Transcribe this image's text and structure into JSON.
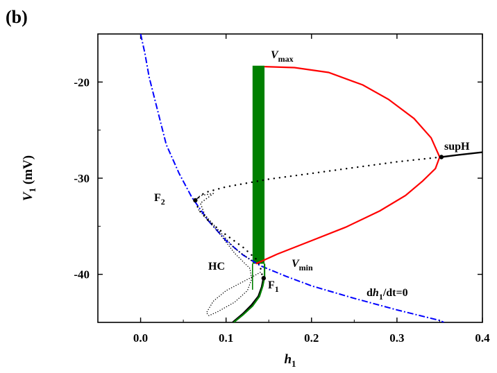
{
  "panel_label": "(b)",
  "colors": {
    "stable_cycle": "#ff0000",
    "chaotic_band": "#008000",
    "nullcline": "#0000ff",
    "equilibrium": "#000000"
  },
  "chart_data": {
    "type": "line",
    "title": "",
    "xlabel": {
      "main": "h",
      "sub": "1"
    },
    "ylabel": {
      "main": "V",
      "sub": "1",
      "unit": " (mV)"
    },
    "xlim": [
      -0.05,
      0.4
    ],
    "ylim": [
      -45,
      -15
    ],
    "xticks": [
      0.0,
      0.1,
      0.2,
      0.3,
      0.4
    ],
    "yticks": [
      -20,
      -30,
      -40
    ],
    "xtick_labels": [
      "0.0",
      "0.1",
      "0.2",
      "0.3",
      "0.4"
    ],
    "ytick_labels": [
      "-20",
      "-30",
      "-40"
    ],
    "grid": false,
    "series": [
      {
        "style": "dash-dot blue",
        "points": [
          [
            0.0,
            -15
          ],
          [
            0.005,
            -17
          ],
          [
            0.01,
            -19.5
          ],
          [
            0.02,
            -23
          ],
          [
            0.03,
            -26.5
          ],
          [
            0.045,
            -29.5
          ],
          [
            0.06,
            -32
          ],
          [
            0.08,
            -34.5
          ],
          [
            0.1,
            -36.5
          ],
          [
            0.12,
            -38
          ],
          [
            0.14,
            -39.1
          ],
          [
            0.17,
            -40.2
          ],
          [
            0.2,
            -41.2
          ],
          [
            0.25,
            -42.5
          ],
          [
            0.3,
            -43.7
          ],
          [
            0.35,
            -44.8
          ],
          [
            0.355,
            -45
          ]
        ]
      },
      {
        "style": "solid red",
        "upper": [
          [
            0.145,
            -18.4
          ],
          [
            0.18,
            -18.5
          ],
          [
            0.22,
            -19
          ],
          [
            0.26,
            -20.3
          ],
          [
            0.29,
            -21.8
          ],
          [
            0.32,
            -23.8
          ],
          [
            0.34,
            -25.8
          ],
          [
            0.35,
            -27.8
          ]
        ],
        "lower": [
          [
            0.135,
            -38.9
          ],
          [
            0.16,
            -37.9
          ],
          [
            0.2,
            -36.5
          ],
          [
            0.24,
            -35.1
          ],
          [
            0.28,
            -33.4
          ],
          [
            0.31,
            -31.8
          ],
          [
            0.33,
            -30.3
          ],
          [
            0.345,
            -29.0
          ],
          [
            0.35,
            -27.8
          ]
        ]
      },
      {
        "style": "solid black",
        "points": [
          [
            0.352,
            -27.8
          ],
          [
            0.37,
            -27.6
          ],
          [
            0.4,
            -27.3
          ]
        ]
      },
      {
        "style": "dotted black",
        "points": [
          [
            0.352,
            -27.8
          ],
          [
            0.3,
            -28.3
          ],
          [
            0.25,
            -28.9
          ],
          [
            0.2,
            -29.5
          ],
          [
            0.15,
            -30.1
          ],
          [
            0.1,
            -30.9
          ],
          [
            0.075,
            -31.5
          ],
          [
            0.064,
            -32.3
          ],
          [
            0.068,
            -33.3
          ],
          [
            0.08,
            -34.5
          ],
          [
            0.1,
            -35.9
          ],
          [
            0.12,
            -37.2
          ],
          [
            0.135,
            -38.4
          ],
          [
            0.14,
            -39.2
          ],
          [
            0.142,
            -40
          ],
          [
            0.144,
            -40.4
          ]
        ]
      },
      {
        "style": "dotted black",
        "points": [
          [
            0.064,
            -32.3
          ],
          [
            0.07,
            -31.8
          ],
          [
            0.085,
            -31.6
          ],
          [
            0.07,
            -32.6
          ],
          [
            0.075,
            -33.8
          ],
          [
            0.095,
            -35.8
          ],
          [
            0.11,
            -37.3
          ],
          [
            0.13,
            -38.6
          ]
        ]
      },
      {
        "style": "dotted black",
        "points": [
          [
            0.068,
            -33.3
          ],
          [
            0.09,
            -35.5
          ],
          [
            0.11,
            -37.8
          ],
          [
            0.128,
            -39.4
          ],
          [
            0.13,
            -40.5
          ],
          [
            0.125,
            -41.7
          ],
          [
            0.11,
            -42.9
          ],
          [
            0.09,
            -43.9
          ],
          [
            0.08,
            -44.3
          ],
          [
            0.077,
            -44
          ],
          [
            0.085,
            -42.8
          ],
          [
            0.1,
            -41.7
          ],
          [
            0.115,
            -41
          ],
          [
            0.13,
            -40.3
          ],
          [
            0.14,
            -39.8
          ]
        ]
      },
      {
        "style": "solid black",
        "points": [
          [
            0.108,
            -45
          ],
          [
            0.12,
            -44.1
          ],
          [
            0.13,
            -43.2
          ],
          [
            0.138,
            -42.3
          ],
          [
            0.142,
            -41.3
          ],
          [
            0.144,
            -40.4
          ]
        ]
      },
      {
        "style": "solid green",
        "points": [
          [
            0.109,
            -45
          ],
          [
            0.12,
            -44.2
          ],
          [
            0.131,
            -43.3
          ],
          [
            0.139,
            -42.3
          ],
          [
            0.143,
            -41.2
          ],
          [
            0.145,
            -40.3
          ],
          [
            0.145,
            -38.9
          ]
        ]
      },
      {
        "style": "green band",
        "h_range": [
          0.131,
          0.145
        ],
        "v_range": [
          -38.9,
          -18.3
        ]
      },
      {
        "style": "solid green",
        "points": [
          [
            0.131,
            -38.9
          ],
          [
            0.131,
            -41.6
          ]
        ]
      }
    ],
    "points": [
      {
        "name": "supH",
        "h": 0.352,
        "v": -27.8
      },
      {
        "name": "F2",
        "h": 0.064,
        "v": -32.3
      },
      {
        "name": "F1",
        "h": 0.144,
        "v": -40.4
      }
    ],
    "annotations": [
      {
        "key": "vmax",
        "main": "V",
        "sub": "max"
      },
      {
        "key": "vmin",
        "main": "V",
        "sub": "min"
      },
      {
        "key": "suph",
        "main": "supH"
      },
      {
        "key": "f2",
        "main": "F",
        "sub": "2"
      },
      {
        "key": "f1",
        "main": "F",
        "sub": "1"
      },
      {
        "key": "hc",
        "main": "HC"
      },
      {
        "key": "nullcline",
        "pre": "d",
        "main": "h",
        "sub": "1",
        "post": "/dt=0"
      }
    ]
  }
}
